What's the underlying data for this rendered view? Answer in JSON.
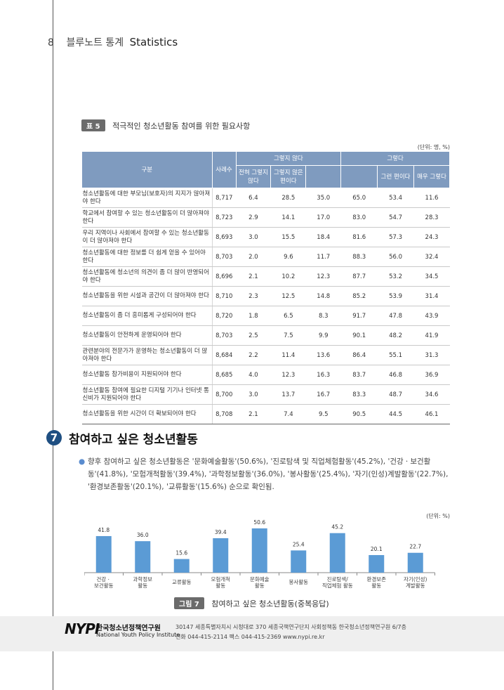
{
  "header": {
    "page_number": "8",
    "title": "블루노트 통계",
    "title_en": "Statistics"
  },
  "table": {
    "badge": "표 5",
    "caption": "적극적인 청소년활동 참여를 위한 필요사항",
    "unit": "(단위: 명, %)",
    "head": {
      "category": "구분",
      "count": "사례수",
      "no_group": "그렇지 않다",
      "yes_group": "그렇다",
      "no_sub1": "전혀 그렇지 않다",
      "no_sub2": "그렇지 않은 편이다",
      "yes_sub1": "그런 편이다",
      "yes_sub2": "매우 그렇다"
    },
    "rows": [
      {
        "label": "청소년활동에 대한 부모님(보호자)의 지지가 많아져야 한다",
        "n": "8,717",
        "a": "6.4",
        "b": "28.5",
        "c": "35.0",
        "d": "65.0",
        "e": "53.4",
        "f": "11.6"
      },
      {
        "label": "학교에서 참여할 수 있는 청소년활동이 더 많아져야 한다",
        "n": "8,723",
        "a": "2.9",
        "b": "14.1",
        "c": "17.0",
        "d": "83.0",
        "e": "54.7",
        "f": "28.3"
      },
      {
        "label": "우리 지역이나 사회에서 참여할 수 있는 청소년활동이 더 많아져야 한다",
        "n": "8,693",
        "a": "3.0",
        "b": "15.5",
        "c": "18.4",
        "d": "81.6",
        "e": "57.3",
        "f": "24.3"
      },
      {
        "label": "청소년활동에 대한 정보를 더 쉽게 얻을 수 있어야 한다",
        "n": "8,703",
        "a": "2.0",
        "b": "9.6",
        "c": "11.7",
        "d": "88.3",
        "e": "56.0",
        "f": "32.4"
      },
      {
        "label": "청소년활동에 청소년의 의견이 좀 더 많이 반영되어야 한다",
        "n": "8,696",
        "a": "2.1",
        "b": "10.2",
        "c": "12.3",
        "d": "87.7",
        "e": "53.2",
        "f": "34.5"
      },
      {
        "label": "청소년활동을 위한 시설과 공간이 더 많아져야 한다",
        "n": "8,710",
        "a": "2.3",
        "b": "12.5",
        "c": "14.8",
        "d": "85.2",
        "e": "53.9",
        "f": "31.4"
      },
      {
        "label": "청소년활동이 좀 더 흥미롭게 구성되어야 한다",
        "n": "8,720",
        "a": "1.8",
        "b": "6.5",
        "c": "8.3",
        "d": "91.7",
        "e": "47.8",
        "f": "43.9"
      },
      {
        "label": "청소년활동이 안전하게 운영되어야 한다",
        "n": "8,703",
        "a": "2.5",
        "b": "7.5",
        "c": "9.9",
        "d": "90.1",
        "e": "48.2",
        "f": "41.9"
      },
      {
        "label": "관련분야의 전문가가 운영하는 청소년활동이 더 많아져야 한다",
        "n": "8,684",
        "a": "2.2",
        "b": "11.4",
        "c": "13.6",
        "d": "86.4",
        "e": "55.1",
        "f": "31.3"
      },
      {
        "label": "청소년활동 참가비용이 지원되어야 한다",
        "n": "8,685",
        "a": "4.0",
        "b": "12.3",
        "c": "16.3",
        "d": "83.7",
        "e": "46.8",
        "f": "36.9"
      },
      {
        "label": "청소년활동 참여에 필요한 디지털 기기나 인터넷 통신비가 지원되어야 한다",
        "n": "8,700",
        "a": "3.0",
        "b": "13.7",
        "c": "16.7",
        "d": "83.3",
        "e": "48.7",
        "f": "34.6"
      },
      {
        "label": "청소년활동을 위한 시간이 더 확보되어야 한다",
        "n": "8,708",
        "a": "2.1",
        "b": "7.4",
        "c": "9.5",
        "d": "90.5",
        "e": "44.5",
        "f": "46.1"
      }
    ]
  },
  "section": {
    "number": "7",
    "title": "참여하고 싶은 청소년활동",
    "bullet": "향후 참여하고 싶은 청소년활동은 '문화예술활동'(50.6%), '진로탐색 및 직업체험활동'(45.2%), '건강ㆍ보건활동'(41.8%), '모험개척활동'(39.4%), '과학정보활동'(36.0%), '봉사활동'(25.4%), '자기(인성)계발활동'(22.7%), '환경보존활동'(20.1%), '교류활동'(15.6%) 순으로 확인됨.",
    "unit": "(단위: %)"
  },
  "chart_data": {
    "type": "bar",
    "categories": [
      "건강ㆍ\n보건활동",
      "과학정보\n활동",
      "교류활동",
      "모험개척\n활동",
      "문화예술\n활동",
      "봉사활동",
      "진로탐색/\n직업체험 활동",
      "환경보존\n활동",
      "자기(인성)\n계발활동"
    ],
    "values": [
      41.8,
      36.0,
      15.6,
      39.4,
      50.6,
      25.4,
      45.2,
      20.1,
      22.7
    ],
    "value_labels": [
      "41.8",
      "36.0",
      "15.6",
      "39.4",
      "50.6",
      "25.4",
      "45.2",
      "20.1",
      "22.7"
    ],
    "ylim": [
      0,
      55
    ],
    "bar_color": "#5b9bd5",
    "grid": false,
    "legend": "none"
  },
  "figure": {
    "badge": "그림 7",
    "caption": "참여하고 싶은 청소년활동(중복응답)"
  },
  "footer": {
    "logo_mark": "NYPI",
    "org_kor": "한국청소년정책연구원",
    "org_eng": "National Youth Policy Institute",
    "address": "30147 세종특별자치시 시청대로 370 세종국책연구단지 사회정책동 한국청소년정책연구원 6/7층",
    "contact": "전화 044-415-2114 팩스 044-415-2369 www.nypi.re.kr"
  }
}
